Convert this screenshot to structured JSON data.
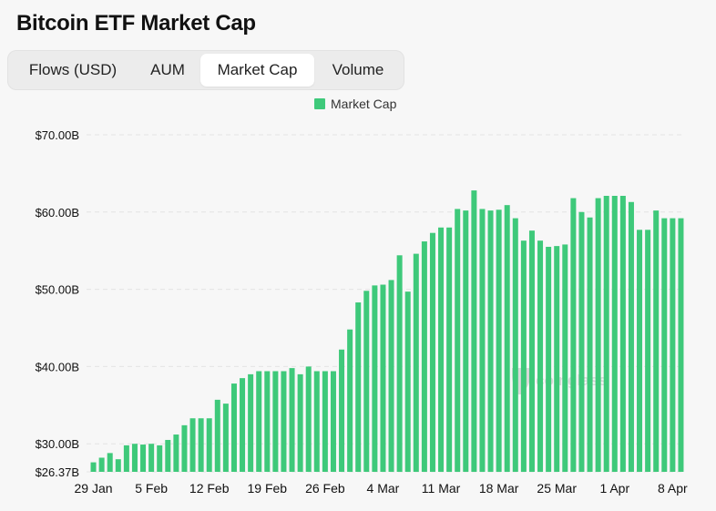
{
  "page": {
    "title": "Bitcoin ETF Market Cap"
  },
  "tabs": [
    {
      "label": "Flows (USD)",
      "active": false
    },
    {
      "label": "AUM",
      "active": false
    },
    {
      "label": "Market Cap",
      "active": true
    },
    {
      "label": "Volume",
      "active": false
    }
  ],
  "colors": {
    "bar": "#3ec97a",
    "grid": "#e4e4e4",
    "text": "#111111"
  },
  "watermark": {
    "text": "coinglass",
    "icon": "coinglass-logo-icon"
  },
  "chart_data": {
    "type": "bar",
    "title": "",
    "xlabel": "",
    "ylabel": "",
    "legend": {
      "position": "top-center",
      "entries": [
        "Market Cap"
      ]
    },
    "ylim": [
      26.37,
      70
    ],
    "yticks": [
      {
        "value": 70,
        "label": "$70.00B"
      },
      {
        "value": 60,
        "label": "$60.00B"
      },
      {
        "value": 50,
        "label": "$50.00B"
      },
      {
        "value": 40,
        "label": "$40.00B"
      },
      {
        "value": 30,
        "label": "$30.00B"
      },
      {
        "value": 26.37,
        "label": "$26.37B"
      }
    ],
    "xtick_labels": [
      {
        "index": 0,
        "label": "29 Jan"
      },
      {
        "index": 7,
        "label": "5 Feb"
      },
      {
        "index": 14,
        "label": "12 Feb"
      },
      {
        "index": 21,
        "label": "19 Feb"
      },
      {
        "index": 28,
        "label": "26 Feb"
      },
      {
        "index": 35,
        "label": "4 Mar"
      },
      {
        "index": 42,
        "label": "11 Mar"
      },
      {
        "index": 49,
        "label": "18 Mar"
      },
      {
        "index": 56,
        "label": "25 Mar"
      },
      {
        "index": 63,
        "label": "1 Apr"
      },
      {
        "index": 70,
        "label": "8 Apr"
      }
    ],
    "grid": true,
    "series": [
      {
        "name": "Market Cap",
        "values": [
          27.6,
          28.2,
          28.8,
          28.0,
          29.8,
          30.0,
          29.9,
          30.0,
          29.8,
          30.5,
          31.2,
          32.4,
          33.3,
          33.3,
          33.3,
          35.7,
          35.2,
          37.8,
          38.5,
          39.0,
          39.4,
          39.4,
          39.4,
          39.4,
          39.8,
          39.0,
          40.0,
          39.4,
          39.4,
          39.4,
          42.2,
          44.8,
          48.3,
          49.8,
          50.5,
          50.6,
          51.2,
          54.4,
          49.7,
          54.6,
          56.2,
          57.3,
          58.0,
          58.0,
          60.4,
          60.2,
          62.8,
          60.4,
          60.2,
          60.3,
          60.9,
          59.2,
          56.3,
          57.6,
          56.3,
          55.5,
          55.6,
          55.8,
          61.8,
          60.0,
          59.3,
          61.8,
          62.1,
          62.1,
          62.1,
          61.3,
          57.7,
          57.7,
          60.2,
          59.2,
          59.2,
          59.2
        ]
      }
    ]
  }
}
